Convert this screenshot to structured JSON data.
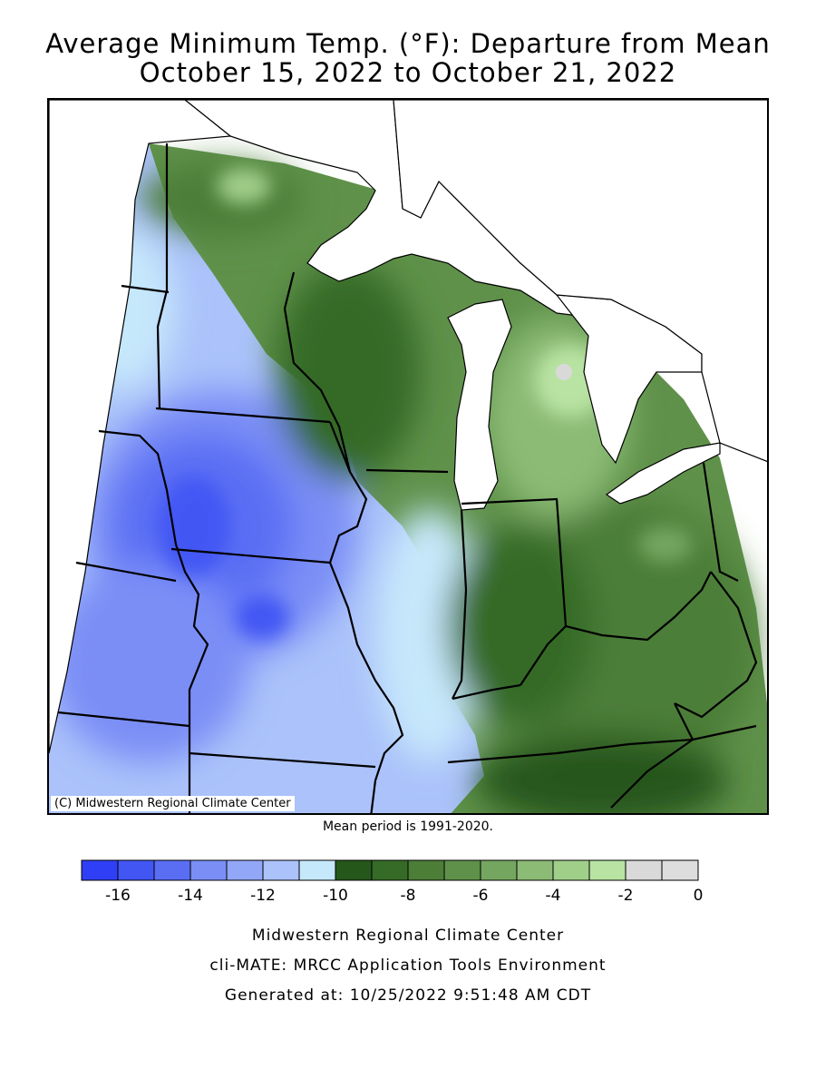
{
  "title": {
    "line1": "Average Minimum Temp. (°F): Departure from Mean",
    "line2": "October 15, 2022 to October 21, 2022"
  },
  "map": {
    "copyright": "(C) Midwestern Regional Climate Center",
    "colors": {
      "lake_fill": "#ffffff",
      "state_border": "#000000",
      "frame": "#000000"
    }
  },
  "mean_period": "Mean period is 1991-2020.",
  "legend": {
    "bins": [
      {
        "color": "#2f3ff5"
      },
      {
        "color": "#4256f4"
      },
      {
        "color": "#5a6ef4"
      },
      {
        "color": "#7a8ef6"
      },
      {
        "color": "#93a7f8"
      },
      {
        "color": "#abc2fa"
      },
      {
        "color": "#c6e8fb"
      },
      {
        "color": "#25571b"
      },
      {
        "color": "#366b27"
      },
      {
        "color": "#4c7e38"
      },
      {
        "color": "#5f914a"
      },
      {
        "color": "#75a660"
      },
      {
        "color": "#8bbb75"
      },
      {
        "color": "#a0cf8a"
      },
      {
        "color": "#b9e3a3"
      },
      {
        "color": "#d9d9d9"
      },
      {
        "color": "#dddddd"
      }
    ],
    "tick_labels": [
      "-16",
      "-14",
      "-12",
      "-10",
      "-8",
      "-6",
      "-4",
      "-2",
      "0"
    ]
  },
  "footer": {
    "line1": "Midwestern Regional Climate Center",
    "line2": "cli-MATE: MRCC Application Tools Environment",
    "line3": "Generated at: 10/25/2022 9:51:48 AM CDT"
  }
}
